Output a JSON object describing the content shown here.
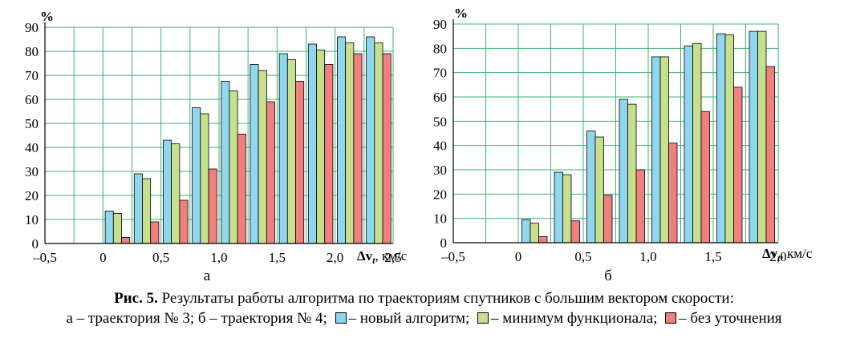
{
  "caption": {
    "fig_label": "Рис. 5.",
    "title": "Результаты работы алгоритма по траекториям спутников с большим вектором скорости:",
    "line2_prefix": "а – траектория № 3; б – траектория № 4;",
    "legend": [
      {
        "text": "– новый алгоритм;",
        "color": "#8fd6ee"
      },
      {
        "text": "– минимум функционала;",
        "color": "#c6e08e"
      },
      {
        "text": "– без уточнения",
        "color": "#f07f7f"
      }
    ]
  },
  "chart_data": [
    {
      "type": "bar",
      "panel_label": "а",
      "ylabel": "%",
      "xlabel_main": "Δv",
      "xlabel_sub": "t",
      "xlabel_unit": ", км/с",
      "ylim": [
        0,
        90
      ],
      "yticks": [
        "0",
        "10",
        "20",
        "30",
        "40",
        "50",
        "60",
        "70",
        "80",
        "90"
      ],
      "xlim": [
        -0.5,
        2.5
      ],
      "xticks": [
        {
          "v": -0.5,
          "label": "–0,5"
        },
        {
          "v": 0,
          "label": "0"
        },
        {
          "v": 0.5,
          "label": "0,5"
        },
        {
          "v": 1.0,
          "label": "1,0"
        },
        {
          "v": 1.5,
          "label": "1,5"
        },
        {
          "v": 2.0,
          "label": "2,0"
        },
        {
          "v": 2.5,
          "label": "2,5"
        }
      ],
      "grid": true,
      "x": [
        0,
        0.25,
        0.5,
        0.75,
        1.0,
        1.25,
        1.5,
        1.75,
        2.0,
        2.25
      ],
      "series": [
        {
          "color": "#8fd6ee",
          "values": [
            13.5,
            29,
            43,
            56.5,
            67.5,
            74.5,
            79,
            83,
            86,
            86
          ]
        },
        {
          "color": "#c6e08e",
          "values": [
            12.5,
            27,
            41.5,
            54,
            63.5,
            72,
            76.5,
            80.5,
            83.5,
            83.5
          ]
        },
        {
          "color": "#f07f7f",
          "values": [
            2.5,
            9,
            18,
            31,
            45.5,
            59,
            67.5,
            74.5,
            79,
            79
          ]
        }
      ]
    },
    {
      "type": "bar",
      "panel_label": "б",
      "ylabel": "%",
      "xlabel_main": "Δv",
      "xlabel_sub": "t",
      "xlabel_unit": ", км/с",
      "ylim": [
        0,
        90
      ],
      "yticks": [
        "0",
        "10",
        "20",
        "30",
        "40",
        "50",
        "60",
        "70",
        "80",
        "90"
      ],
      "xlim": [
        -0.5,
        2.0
      ],
      "xticks": [
        {
          "v": -0.5,
          "label": "–0,5"
        },
        {
          "v": 0,
          "label": "0"
        },
        {
          "v": 0.5,
          "label": "0,5"
        },
        {
          "v": 1.0,
          "label": "1,0"
        },
        {
          "v": 1.5,
          "label": "1,5"
        },
        {
          "v": 2.0,
          "label": "2,0"
        }
      ],
      "grid": true,
      "x": [
        0,
        0.25,
        0.5,
        0.75,
        1.0,
        1.25,
        1.5,
        1.75
      ],
      "series": [
        {
          "color": "#8fd6ee",
          "values": [
            9.5,
            29,
            46,
            59,
            76.5,
            81,
            86,
            87
          ]
        },
        {
          "color": "#c6e08e",
          "values": [
            8,
            28,
            43.5,
            57,
            76.5,
            82,
            85.5,
            87
          ]
        },
        {
          "color": "#f07f7f",
          "values": [
            2.5,
            9,
            19.5,
            30,
            41,
            54,
            64,
            72.5
          ]
        }
      ]
    }
  ]
}
